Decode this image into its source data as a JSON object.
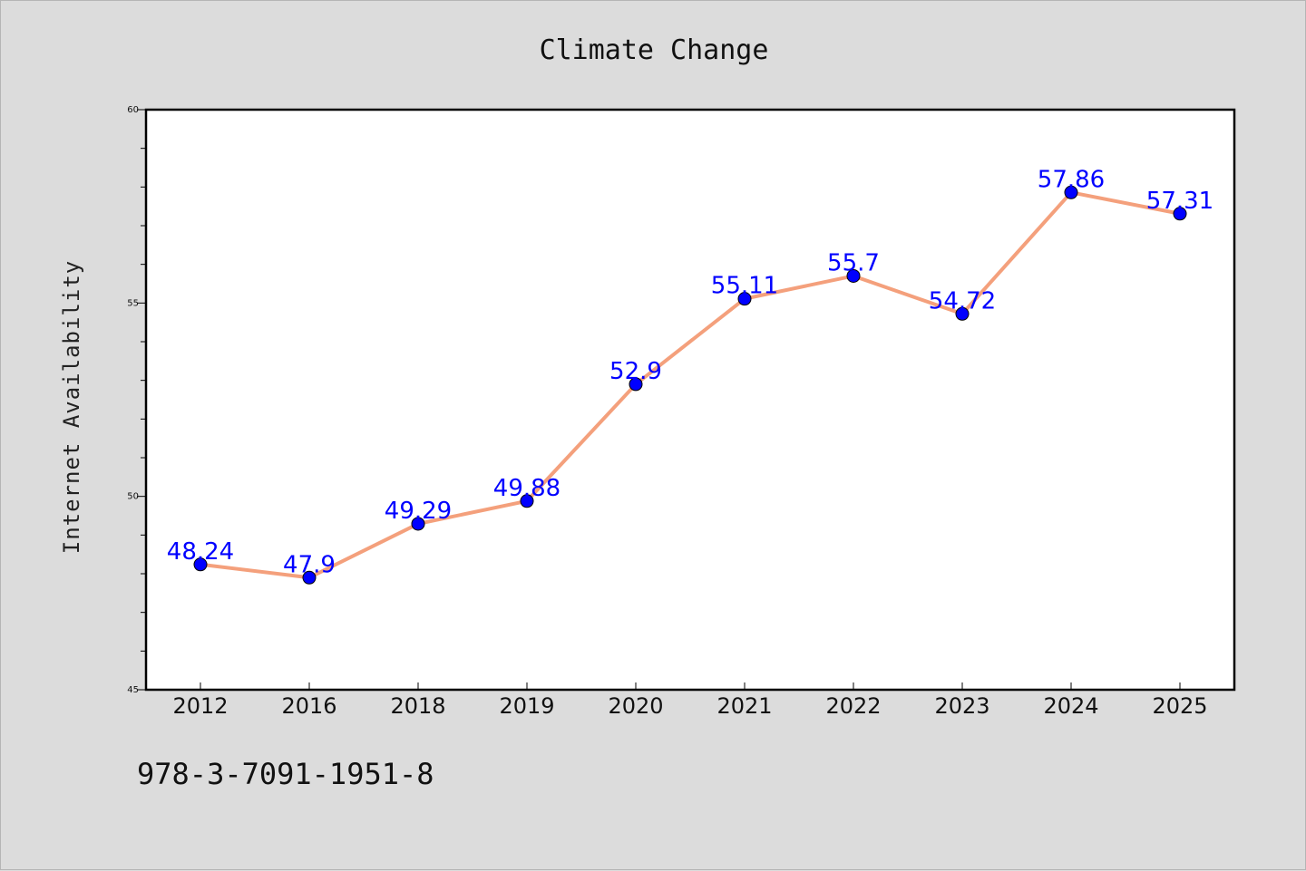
{
  "footer_text": "978-3-7091-1951-8",
  "chart_data": {
    "type": "line",
    "title": "Climate Change",
    "xlabel": "",
    "ylabel": "Internet Availability",
    "categories": [
      "2012",
      "2016",
      "2018",
      "2019",
      "2020",
      "2021",
      "2022",
      "2023",
      "2024",
      "2025"
    ],
    "series": [
      {
        "values": [
          48.24,
          47.9,
          49.29,
          49.88,
          52.9,
          55.11,
          55.7,
          54.72,
          57.86,
          57.31
        ],
        "labels": [
          "48.24",
          "47.9",
          "49.29",
          "49.88",
          "52.9",
          "55.11",
          "55.7",
          "54.72",
          "57.86",
          "57.31"
        ],
        "line_color": "#f4a07c",
        "marker_color": "#0000ff"
      }
    ],
    "ylim": [
      45,
      60
    ],
    "yticks": [
      "45",
      "50",
      "55",
      "60"
    ],
    "grid": false,
    "legend": "none"
  }
}
